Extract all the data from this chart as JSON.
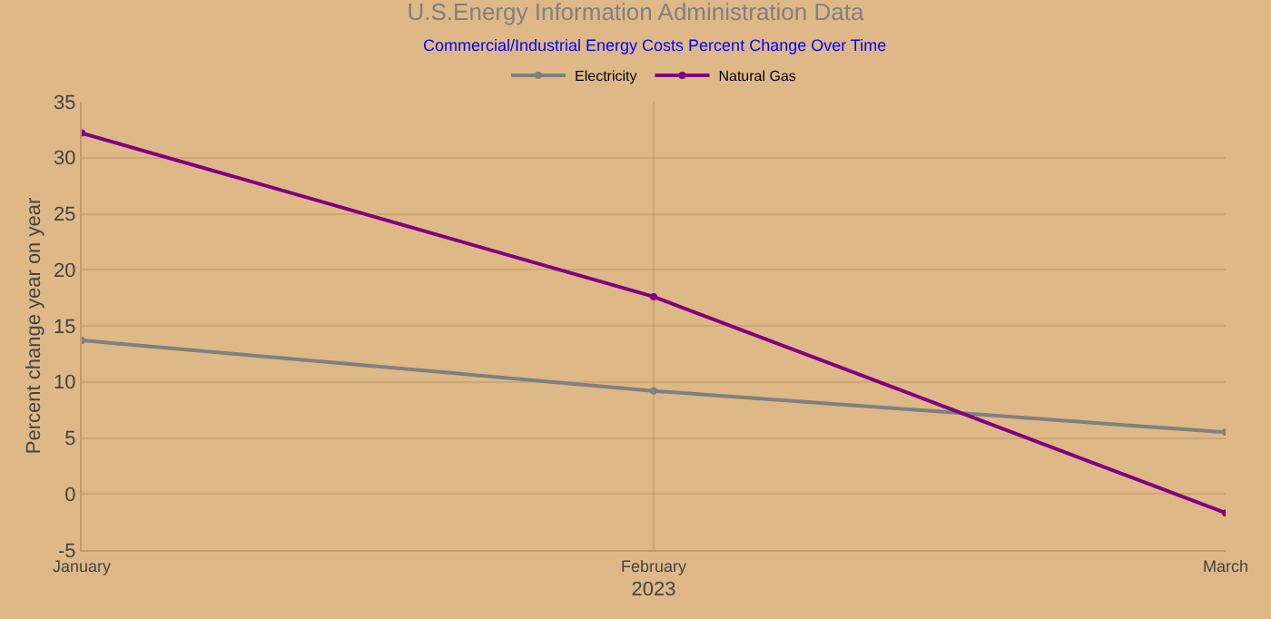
{
  "chart_data": {
    "type": "line",
    "title": "U.S.Energy Information Administration Data",
    "subtitle": "Commercial/Industrial Energy Costs Percent Change Over Time",
    "xlabel": "2023",
    "ylabel": "Percent change year on year",
    "categories": [
      "January",
      "February",
      "March"
    ],
    "series": [
      {
        "name": "Electricity",
        "color": "#808080",
        "values": [
          13.7,
          9.2,
          5.5
        ]
      },
      {
        "name": "Natural Gas",
        "color": "#800080",
        "values": [
          32.2,
          17.6,
          -1.7
        ]
      }
    ],
    "ylim": [
      -5,
      35
    ],
    "yticks": [
      -5,
      0,
      5,
      10,
      15,
      20,
      25,
      30,
      35
    ],
    "grid": true,
    "legend": "top",
    "marker": "circle",
    "line_style": "solid"
  }
}
